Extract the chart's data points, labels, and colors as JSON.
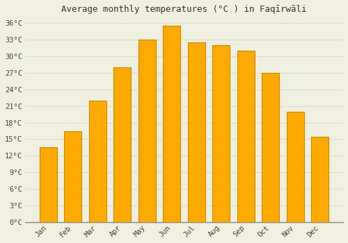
{
  "months": [
    "Jan",
    "Feb",
    "Mar",
    "Apr",
    "May",
    "Jun",
    "Jul",
    "Aug",
    "Sep",
    "Oct",
    "Nov",
    "Dec"
  ],
  "temperatures": [
    13.5,
    16.5,
    22.0,
    28.0,
    33.0,
    35.5,
    32.5,
    32.0,
    31.0,
    27.0,
    20.0,
    15.5
  ],
  "bar_color": "#FFAA00",
  "bar_edge_color": "#CC8800",
  "title": "Average monthly temperatures (°C ) in Faqīrwāli",
  "ylim": [
    0,
    37
  ],
  "yticks": [
    0,
    3,
    6,
    9,
    12,
    15,
    18,
    21,
    24,
    27,
    30,
    33,
    36
  ],
  "ytick_labels": [
    "0°C",
    "3°C",
    "6°C",
    "9°C",
    "12°C",
    "15°C",
    "18°C",
    "21°C",
    "24°C",
    "27°C",
    "30°C",
    "33°C",
    "36°C"
  ],
  "background_color": "#f0f0e0",
  "grid_color": "#ddddcc",
  "title_fontsize": 9,
  "tick_fontsize": 7.5,
  "bar_width": 0.7
}
